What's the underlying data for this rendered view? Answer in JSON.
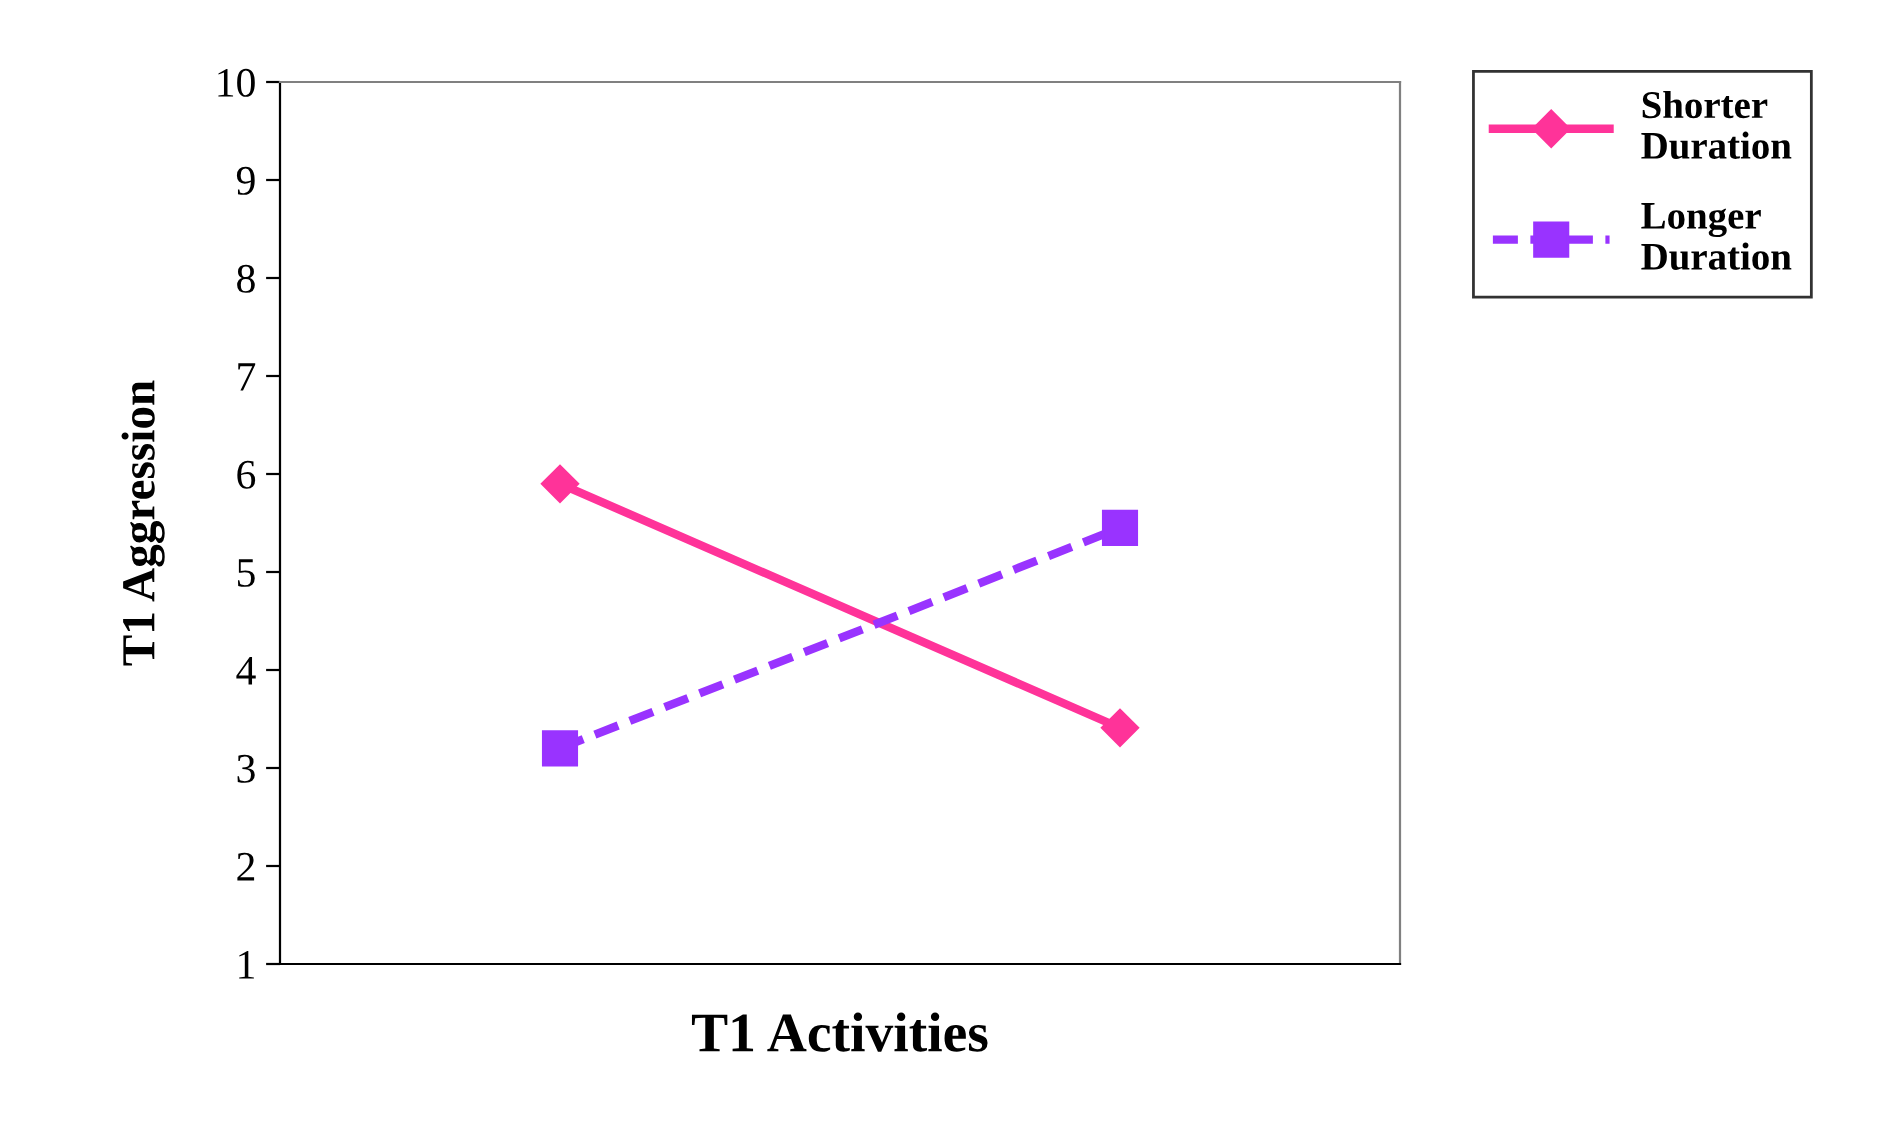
{
  "chart_data": {
    "type": "line",
    "xlabel": "T1 Activities",
    "ylabel": "T1 Aggression",
    "categories": [
      null,
      null
    ],
    "series": [
      {
        "name": "Shorter Duration",
        "color": "#ff3399",
        "values": [
          5.9,
          3.41
        ],
        "marker": "diamond",
        "line_style": "solid"
      },
      {
        "name": "Longer Duration",
        "color": "#9933ff",
        "values": [
          3.2,
          5.45
        ],
        "marker": "square",
        "line_style": "dashed"
      }
    ],
    "ylim": [
      1,
      10
    ],
    "yticks": [
      1,
      2,
      3,
      4,
      5,
      6,
      7,
      8,
      9,
      10
    ],
    "grid": false,
    "legend": "top right",
    "tick_labels": "y"
  }
}
